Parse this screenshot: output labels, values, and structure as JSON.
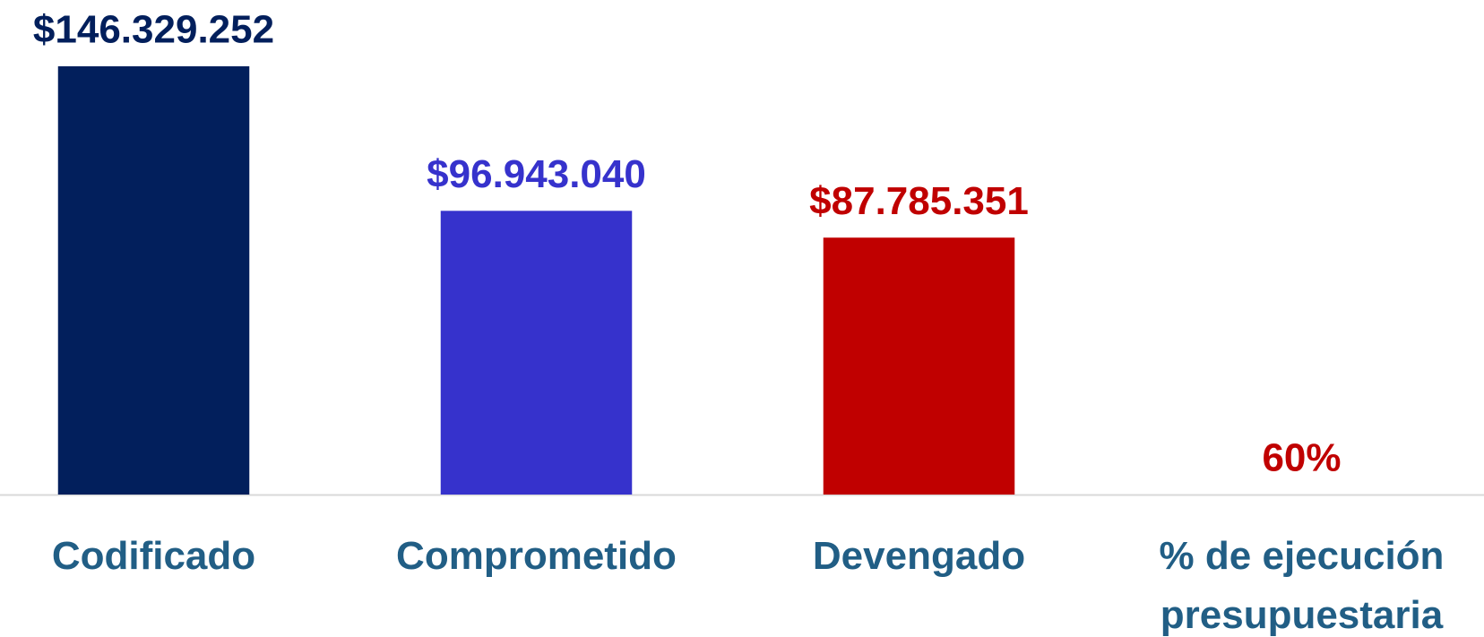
{
  "chart_data": {
    "type": "bar",
    "categories": [
      "Codificado",
      "Comprometido",
      "Devengado",
      "% de ejecución presupuestaria"
    ],
    "values": [
      146329252,
      96943040,
      87785351,
      60
    ],
    "value_labels": [
      "$146.329.252",
      "$96.943.040",
      "$87.785.351",
      "60%"
    ],
    "colors": [
      "#021f5c",
      "#3632cc",
      "#c00000",
      "#c00000"
    ]
  }
}
